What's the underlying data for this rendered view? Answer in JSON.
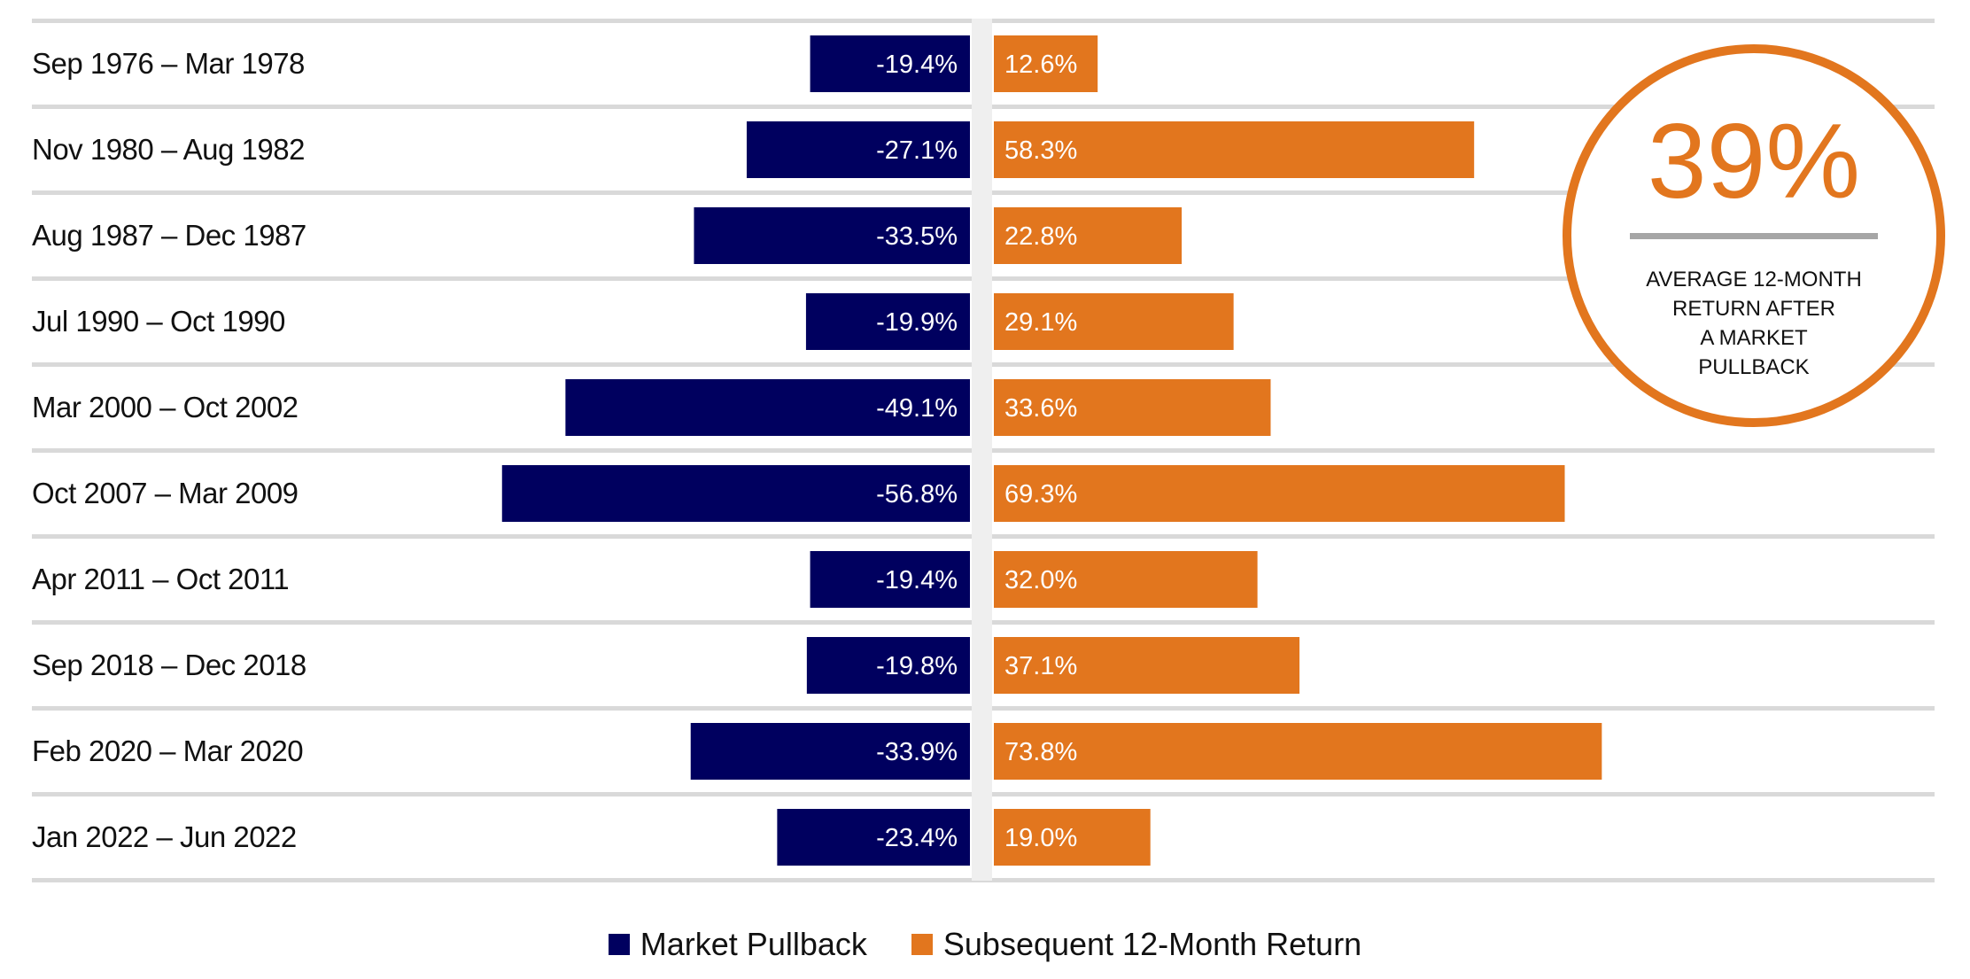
{
  "chart_data": {
    "type": "bar",
    "orientation": "horizontal-diverging",
    "categories": [
      "Sep 1976 – Mar 1978",
      "Nov 1980 – Aug 1982",
      "Aug 1987 – Dec 1987",
      "Jul 1990 – Oct 1990",
      "Mar 2000 – Oct 2002",
      "Oct 2007 – Mar 2009",
      "Apr 2011 – Oct 2011",
      "Sep 2018 – Dec 2018",
      "Feb 2020 – Mar 2020",
      "Jan 2022 – Jun 2022"
    ],
    "series": [
      {
        "name": "Market Pullback",
        "color": "#00005f",
        "values": [
          -19.4,
          -27.1,
          -33.5,
          -19.9,
          -49.1,
          -56.8,
          -19.4,
          -19.8,
          -33.9,
          -23.4
        ],
        "labels": [
          "-19.4%",
          "-27.1%",
          "-33.5%",
          "-19.9%",
          "-49.1%",
          "-56.8%",
          "-19.4%",
          "-19.8%",
          "-33.9%",
          "-23.4%"
        ]
      },
      {
        "name": "Subsequent 12-Month Return",
        "color": "#e2761e",
        "values": [
          12.6,
          58.3,
          22.8,
          29.1,
          33.6,
          69.3,
          32.0,
          37.1,
          73.8,
          19.0
        ],
        "labels": [
          "12.6%",
          "58.3%",
          "22.8%",
          "29.1%",
          "33.6%",
          "69.3%",
          "32.0%",
          "37.1%",
          "73.8%",
          "19.0%"
        ]
      }
    ],
    "legend_position": "bottom",
    "grid": true,
    "callout": {
      "value": "39%",
      "lines": [
        "AVERAGE 12-MONTH",
        "RETURN AFTER",
        "A MARKET",
        "PULLBACK"
      ],
      "color": "#e2761e"
    }
  }
}
